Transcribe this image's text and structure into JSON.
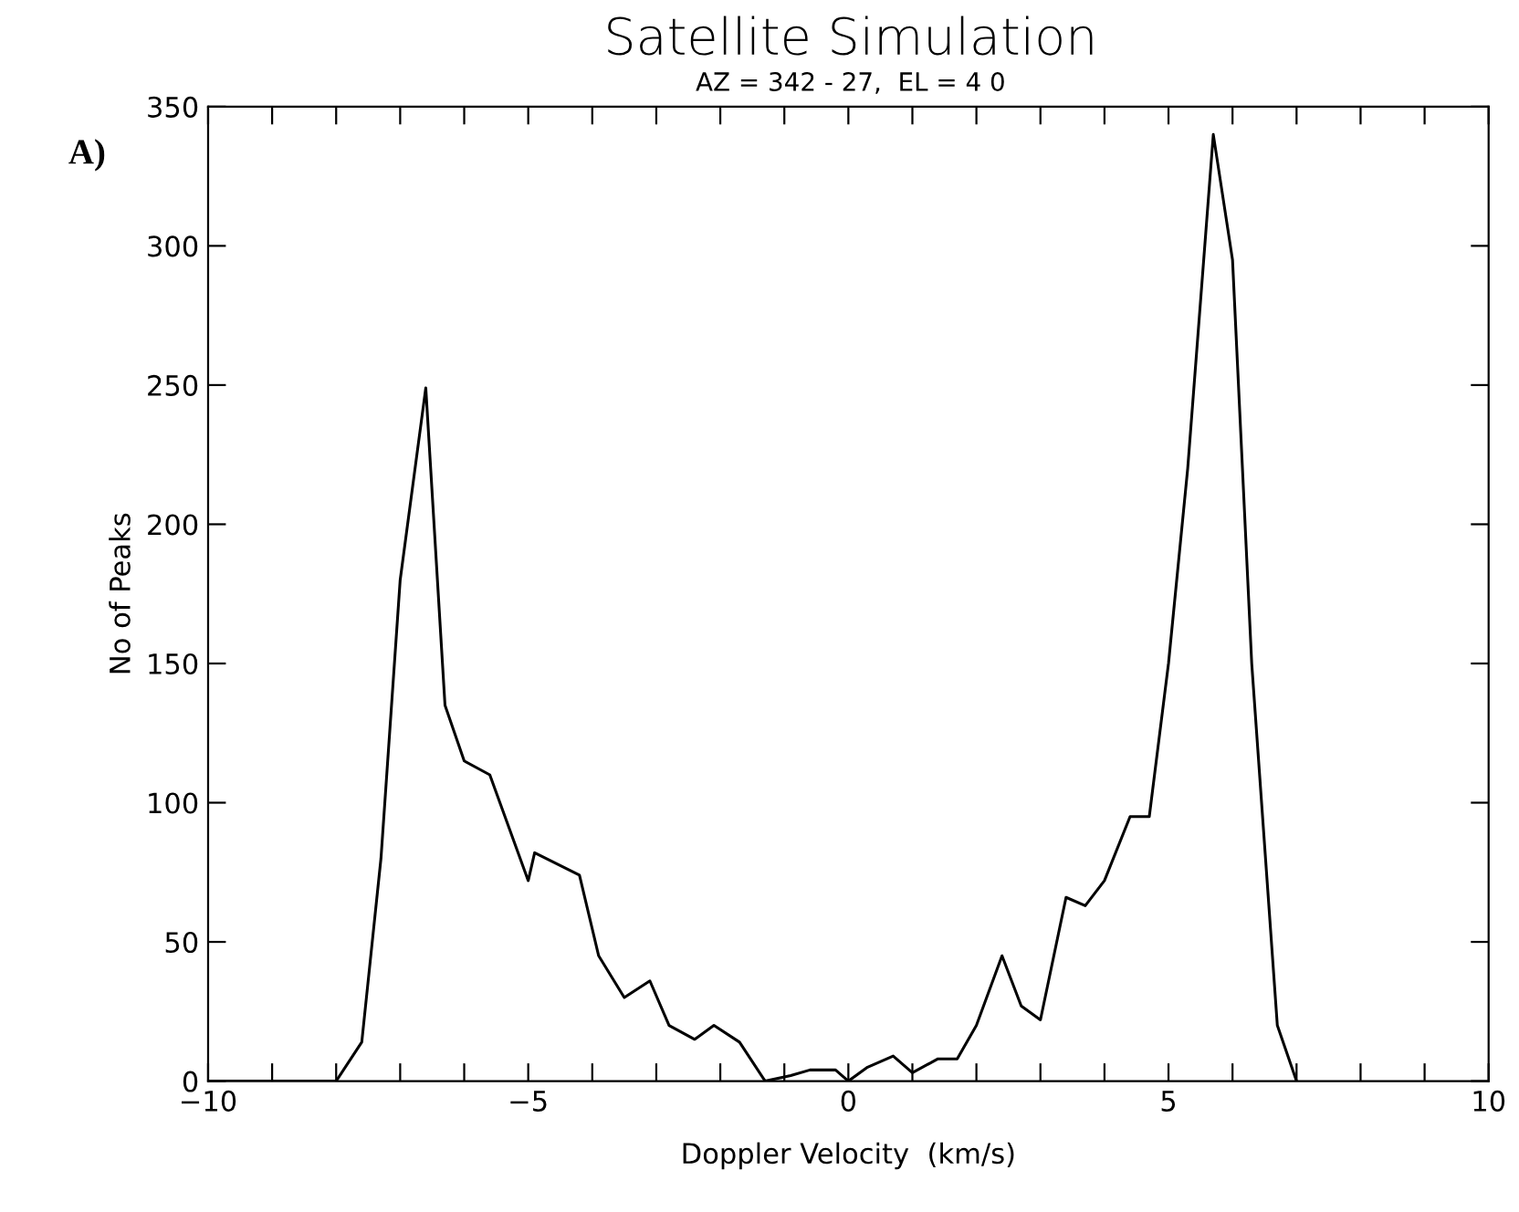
{
  "chart_data": {
    "type": "line",
    "title": "Satellite Simulation",
    "subtitle": "AZ = 342 - 27,  EL = 4 0",
    "xlabel": "Doppler Velocity  (km/s)",
    "ylabel": "No of Peaks",
    "annotations": [
      "A)"
    ],
    "xlim": [
      -10,
      10
    ],
    "ylim": [
      0,
      350
    ],
    "xticks": [
      -10,
      {
        "value": -9,
        "label": null
      },
      {
        "value": -8,
        "label": null
      },
      {
        "value": -7,
        "label": null
      },
      {
        "value": -6,
        "label": null
      },
      {
        "value": -5,
        "label": "−5"
      },
      {
        "value": -4,
        "label": null
      },
      {
        "value": -3,
        "label": null
      },
      {
        "value": -2,
        "label": null
      },
      {
        "value": -1,
        "label": null
      },
      0,
      {
        "value": 1,
        "label": null
      },
      {
        "value": 2,
        "label": null
      },
      {
        "value": 3,
        "label": null
      },
      {
        "value": 4,
        "label": null
      },
      5,
      {
        "value": 6,
        "label": null
      },
      {
        "value": 7,
        "label": null
      },
      {
        "value": 8,
        "label": null
      },
      {
        "value": 9,
        "label": null
      },
      10
    ],
    "yticks": [
      0,
      50,
      100,
      150,
      200,
      250,
      300,
      350
    ],
    "grid": false,
    "legend": false,
    "marker": "none",
    "line_style": "solid",
    "series": [
      {
        "color": "#000000",
        "x": [
          -10,
          -8.0,
          -7.6,
          -7.3,
          -7.0,
          -6.6,
          -6.3,
          -6.0,
          -5.6,
          -5.0,
          -4.9,
          -4.2,
          -3.9,
          -3.5,
          -3.1,
          -2.8,
          -2.4,
          -2.1,
          -1.7,
          -1.3,
          -0.9,
          -0.6,
          -0.2,
          0.0,
          0.3,
          0.7,
          1.0,
          1.4,
          1.7,
          2.0,
          2.4,
          2.7,
          3.0,
          3.4,
          3.7,
          4.0,
          4.4,
          4.7,
          5.0,
          5.3,
          5.7,
          6.0,
          6.3,
          6.7,
          7.0
        ],
        "values": [
          0,
          0,
          14,
          80,
          180,
          249,
          135,
          115,
          110,
          72,
          82,
          74,
          45,
          30,
          36,
          20,
          15,
          20,
          14,
          0,
          2,
          4,
          4,
          0,
          5,
          9,
          3,
          8,
          8,
          20,
          45,
          27,
          22,
          66,
          63,
          72,
          95,
          95,
          150,
          220,
          340,
          295,
          150,
          20,
          0
        ]
      }
    ]
  }
}
